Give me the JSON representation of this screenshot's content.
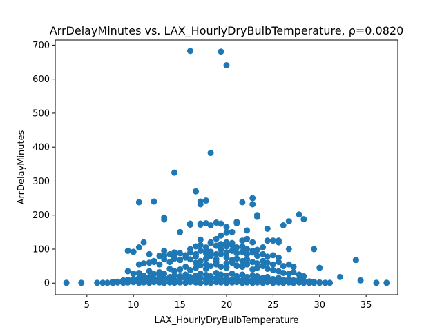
{
  "chart_data": {
    "type": "scatter",
    "title": "ArrDelayMinutes vs. LAX_HourlyDryBulbTemperature, ρ=0.0820",
    "xlabel": "LAX_HourlyDryBulbTemperature",
    "ylabel": "ArrDelayMinutes",
    "xlim": [
      1.6,
      38.4
    ],
    "ylim": [
      -34,
      715
    ],
    "xticks": [
      5,
      10,
      15,
      20,
      25,
      30,
      35
    ],
    "xtick_labels": [
      "5",
      "10",
      "15",
      "20",
      "25",
      "30",
      "35"
    ],
    "yticks": [
      0,
      100,
      200,
      300,
      400,
      500,
      600,
      700
    ],
    "ytick_labels": [
      "0",
      "100",
      "200",
      "300",
      "400",
      "500",
      "600",
      "700"
    ],
    "grid": false,
    "marker_color": "#1f77b4",
    "series": [
      {
        "x": [
          2.8,
          4.4,
          6.1,
          6.7,
          7.2,
          7.8,
          8.3,
          8.9,
          9.4,
          10.0,
          10.6,
          11.1,
          11.7,
          12.2,
          12.8,
          13.3,
          13.9,
          14.4,
          15.0,
          15.6,
          16.1,
          16.7,
          17.2,
          17.8,
          18.3,
          18.9,
          19.4,
          20.0,
          20.6,
          21.1,
          21.7,
          22.2,
          22.8,
          23.3,
          23.9,
          24.4,
          25.0,
          25.6,
          26.1,
          26.7,
          27.2,
          27.8,
          28.3,
          28.9,
          29.4,
          30.0,
          30.6,
          31.1,
          32.2,
          33.9,
          34.4,
          36.1,
          37.2,
          16.1,
          19.4,
          20.0,
          18.3,
          14.4,
          16.7,
          17.2,
          17.2,
          17.8,
          17.2,
          21.7,
          22.8,
          22.8,
          23.3,
          23.3,
          10.6,
          12.2,
          13.3,
          13.3,
          27.8,
          28.3,
          26.7,
          9.4,
          10.0,
          10.6,
          11.1,
          11.7,
          12.2,
          12.8,
          13.3,
          14.4,
          15.0,
          16.1,
          17.2,
          17.8,
          18.3,
          18.9,
          19.4,
          20.0,
          20.6,
          21.1,
          21.7,
          22.2,
          22.8,
          23.3,
          23.9,
          24.4,
          25.0,
          25.6,
          26.1,
          26.7,
          29.4,
          30.0,
          33.9,
          16.1,
          17.2,
          17.8,
          18.3,
          18.9,
          19.4,
          20.0,
          20.6,
          21.1,
          22.2,
          23.9,
          24.4,
          25.6,
          14.4,
          15.0,
          18.9,
          19.4,
          20.0,
          9.4,
          10.0,
          10.6,
          11.1,
          11.7,
          12.2,
          12.8,
          13.3,
          13.9,
          14.4,
          15.0,
          15.6,
          16.1,
          16.7,
          17.2,
          17.8,
          18.3,
          18.9,
          19.4,
          20.0,
          20.6,
          21.1,
          21.7,
          22.2,
          22.8,
          23.3,
          23.9,
          24.4,
          25.0,
          25.6,
          26.1,
          26.7,
          27.2,
          27.8,
          28.3,
          8.9,
          9.4,
          10.0,
          10.6,
          11.1,
          11.7,
          12.2,
          12.8,
          13.3,
          13.9,
          14.4,
          15.0,
          15.6,
          16.1,
          16.7,
          17.2,
          17.8,
          18.3,
          18.9,
          19.4,
          20.0,
          20.6,
          21.1,
          21.7,
          22.2,
          22.8,
          23.3,
          23.9,
          24.4,
          25.0,
          25.6,
          26.1,
          26.7,
          27.2,
          27.8,
          28.3,
          28.9,
          29.4,
          7.8,
          8.3,
          8.9,
          9.4,
          10.0,
          10.6,
          11.1,
          11.7,
          12.2,
          12.8,
          13.3,
          13.9,
          14.4,
          15.0,
          15.6,
          16.1,
          16.7,
          17.2,
          17.8,
          18.3,
          18.9,
          19.4,
          20.0,
          20.6,
          21.1,
          21.7,
          22.2,
          22.8,
          23.3,
          23.9,
          24.4,
          25.0,
          25.6,
          26.1,
          26.7,
          27.2,
          27.8,
          28.3,
          28.9,
          29.4,
          30.0,
          10.6,
          11.1,
          11.7,
          12.2,
          12.8,
          13.3,
          13.9,
          14.4,
          15.0,
          15.6,
          16.1,
          16.7,
          17.2,
          17.8,
          18.3,
          18.9,
          19.4,
          20.0,
          20.6,
          21.1,
          21.7,
          22.2,
          22.8,
          23.3,
          23.9,
          24.4,
          25.0,
          25.6,
          26.1,
          26.7,
          27.2,
          13.3,
          13.9,
          14.4,
          15.0,
          15.6,
          16.1,
          16.7,
          17.2,
          17.8,
          18.3,
          18.9,
          19.4,
          20.0,
          20.6,
          21.1,
          21.7,
          22.2,
          22.8,
          23.3,
          23.9,
          24.4,
          25.0,
          25.6,
          16.1,
          16.7,
          17.2,
          17.8,
          18.3,
          18.9,
          19.4,
          20.0,
          20.6,
          21.1,
          21.7,
          22.2,
          22.8,
          16.7,
          17.8,
          18.9,
          20.0,
          21.1,
          19.4
        ],
        "y": [
          1,
          1,
          1,
          1,
          1,
          1,
          2,
          1,
          2,
          3,
          1,
          2,
          1,
          3,
          2,
          1,
          2,
          1,
          2,
          1,
          3,
          2,
          1,
          2,
          1,
          3,
          2,
          1,
          2,
          3,
          1,
          2,
          1,
          2,
          1,
          3,
          1,
          2,
          1,
          2,
          1,
          2,
          1,
          1,
          1,
          1,
          1,
          1,
          18,
          68,
          8,
          1,
          1,
          683,
          681,
          641,
          383,
          325,
          270,
          240,
          232,
          243,
          175,
          238,
          232,
          250,
          200,
          195,
          238,
          240,
          193,
          187,
          202,
          188,
          182,
          95,
          92,
          105,
          120,
          85,
          62,
          80,
          95,
          90,
          150,
          172,
          128,
          95,
          120,
          130,
          110,
          148,
          118,
          180,
          125,
          155,
          120,
          98,
          85,
          160,
          125,
          125,
          170,
          100,
          100,
          45,
          68,
          175,
          172,
          176,
          170,
          178,
          175,
          165,
          150,
          176,
          130,
          105,
          125,
          120,
          75,
          68,
          110,
          140,
          108,
          35,
          28,
          30,
          22,
          35,
          27,
          32,
          28,
          42,
          35,
          40,
          48,
          38,
          45,
          52,
          42,
          50,
          55,
          48,
          45,
          60,
          52,
          48,
          55,
          40,
          45,
          50,
          42,
          38,
          35,
          30,
          28,
          32,
          25,
          20,
          8,
          10,
          12,
          15,
          10,
          18,
          12,
          20,
          15,
          18,
          22,
          20,
          25,
          18,
          22,
          28,
          24,
          20,
          30,
          25,
          22,
          28,
          20,
          25,
          18,
          22,
          20,
          15,
          18,
          12,
          15,
          10,
          12,
          8,
          10,
          6,
          5,
          4,
          3,
          4,
          5,
          6,
          4,
          8,
          6,
          10,
          7,
          9,
          12,
          10,
          8,
          12,
          14,
          10,
          12,
          15,
          10,
          12,
          14,
          11,
          13,
          10,
          12,
          8,
          10,
          9,
          11,
          8,
          9,
          7,
          8,
          6,
          5,
          6,
          4,
          3,
          4,
          2,
          2,
          55,
          58,
          60,
          65,
          55,
          70,
          62,
          72,
          68,
          75,
          70,
          78,
          65,
          72,
          80,
          70,
          85,
          75,
          68,
          72,
          65,
          70,
          62,
          58,
          65,
          60,
          55,
          62,
          50,
          55,
          48,
          80,
          85,
          78,
          88,
          82,
          90,
          85,
          95,
          88,
          92,
          85,
          98,
          90,
          95,
          88,
          92,
          85,
          90,
          80,
          85,
          78,
          82,
          75,
          100,
          108,
          112,
          105,
          118,
          110,
          115,
          120,
          112,
          105,
          108,
          100,
          95,
          60,
          55,
          62,
          58,
          50,
          100
        ]
      }
    ]
  }
}
